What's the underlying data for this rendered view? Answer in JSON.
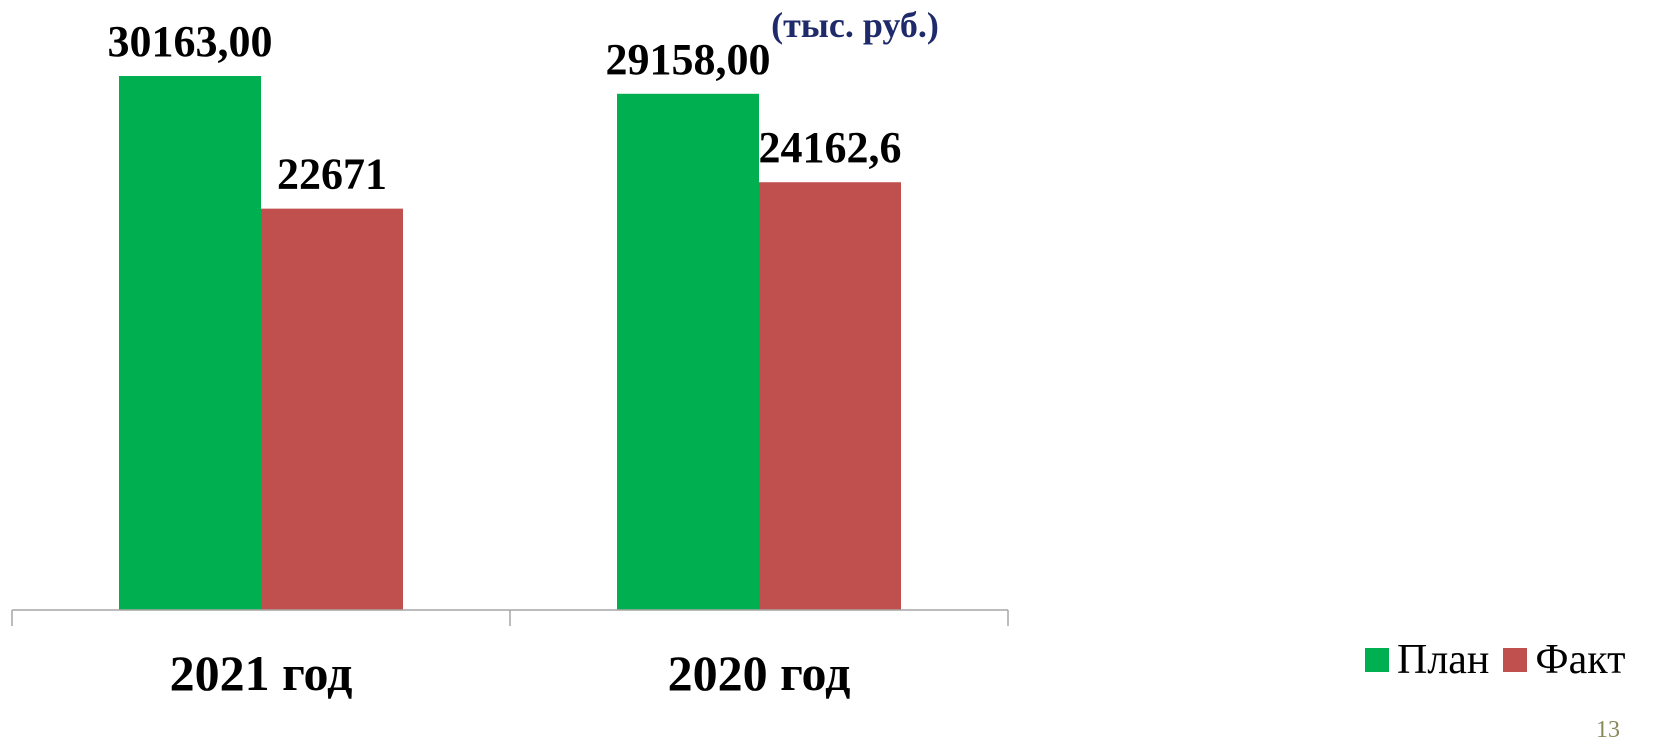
{
  "unit_note": "(тыс. руб.)",
  "slide_number": "13",
  "colors": {
    "plan": "#00b050",
    "fact": "#c0504d",
    "axis": "#a6a6a6",
    "unit_text": "#1f2a6b"
  },
  "chart_data": {
    "type": "bar",
    "categories": [
      "2021 год",
      "2020 год"
    ],
    "series": [
      {
        "name": "План",
        "values": [
          30163.0,
          29158.0
        ],
        "labels": [
          "30163,00",
          "29158,00"
        ]
      },
      {
        "name": "Факт",
        "values": [
          22671,
          24162.6
        ],
        "labels": [
          "22671",
          "24162,6"
        ]
      }
    ],
    "ylim": [
      0,
      30163
    ],
    "grid": false,
    "legend_position": "bottom-right"
  }
}
